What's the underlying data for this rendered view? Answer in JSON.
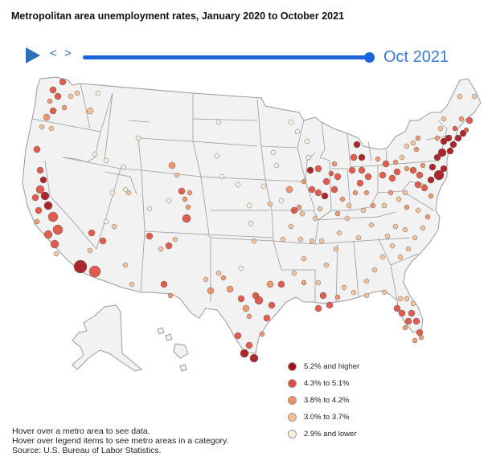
{
  "title": "Metropolitan area unemployment rates, January 2020 to October 2021",
  "controls": {
    "prev": "<",
    "next": ">",
    "date": "Oct 2021",
    "progress_fraction": 1.0
  },
  "colors": {
    "land": "#f2f2f2",
    "border": "#9a9a9a",
    "accent": "#1a63d8"
  },
  "legend": [
    {
      "label": "5.2% and higher",
      "color": "#a50f15"
    },
    {
      "label": "4.3% to 5.1%",
      "color": "#de4b3b"
    },
    {
      "label": "3.8% to 4.2%",
      "color": "#f08d5e"
    },
    {
      "label": "3.0% to 3.7%",
      "color": "#f7be91"
    },
    {
      "label": "2.9% and lower",
      "color": "#fdeede"
    }
  ],
  "footer": {
    "line1": "Hover over a metro area to see data.",
    "line2": "Hover over legend items to see metro areas in a category.",
    "line3": "Source: U.S. Bureau of Labor Statistics."
  }
}
